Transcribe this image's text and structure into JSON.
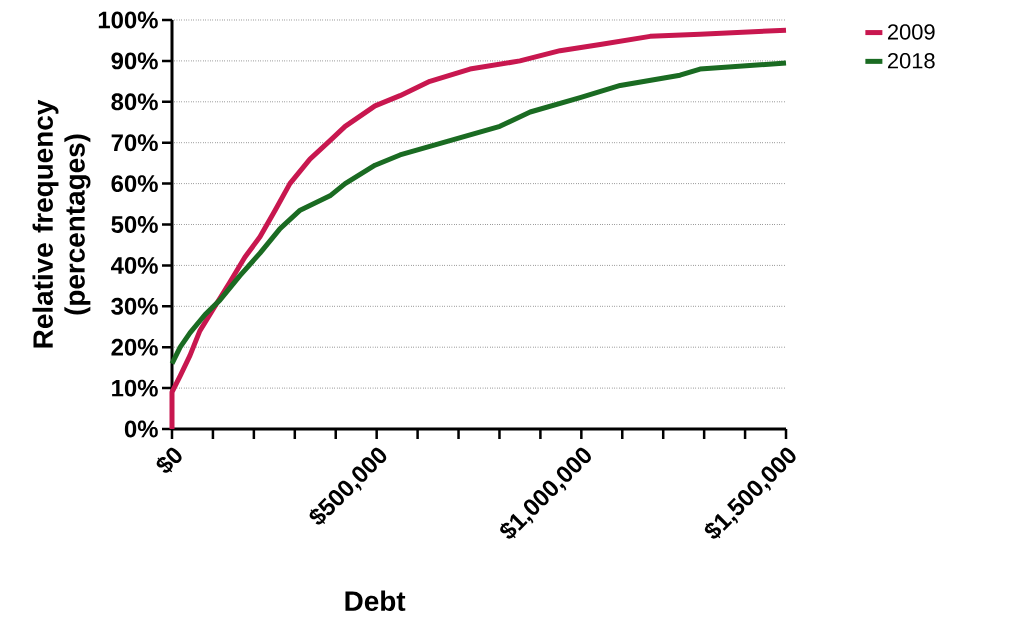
{
  "chart_data": {
    "type": "line",
    "xlabel": "Debt",
    "ylabel": "Relative frequency (percentages)",
    "xlim": [
      0,
      1500000
    ],
    "ylim": [
      0,
      100
    ],
    "xticks": [
      {
        "value": 0,
        "label": "$0"
      },
      {
        "value": 100000,
        "label": null
      },
      {
        "value": 200000,
        "label": null
      },
      {
        "value": 300000,
        "label": null
      },
      {
        "value": 400000,
        "label": null
      },
      {
        "value": 500000,
        "label": "$500,000"
      },
      {
        "value": 600000,
        "label": null
      },
      {
        "value": 700000,
        "label": null
      },
      {
        "value": 800000,
        "label": null
      },
      {
        "value": 900000,
        "label": null
      },
      {
        "value": 1000000,
        "label": "$1,000,000"
      },
      {
        "value": 1100000,
        "label": null
      },
      {
        "value": 1200000,
        "label": null
      },
      {
        "value": 1300000,
        "label": null
      },
      {
        "value": 1400000,
        "label": null
      },
      {
        "value": 1500000,
        "label": "$1,500,000"
      }
    ],
    "yticks": [
      {
        "value": 0,
        "label": "0%"
      },
      {
        "value": 10,
        "label": "10%"
      },
      {
        "value": 20,
        "label": "20%"
      },
      {
        "value": 30,
        "label": "30%"
      },
      {
        "value": 40,
        "label": "40%"
      },
      {
        "value": 50,
        "label": "50%"
      },
      {
        "value": 60,
        "label": "60%"
      },
      {
        "value": 70,
        "label": "70%"
      },
      {
        "value": 80,
        "label": "80%"
      },
      {
        "value": 90,
        "label": "90%"
      },
      {
        "value": 100,
        "label": "100%"
      }
    ],
    "grid": "y",
    "legend": "top right",
    "marker": "none",
    "line_style": "solid",
    "series": [
      {
        "name": "2009",
        "color": "#c8174f",
        "x": [
          0,
          0,
          20000,
          44000,
          68000,
          105000,
          142000,
          178000,
          215000,
          252000,
          288000,
          337000,
          386000,
          423000,
          496000,
          557000,
          630000,
          728000,
          850000,
          948000,
          1046000,
          1168000,
          1290000,
          1500000
        ],
        "values": [
          0,
          9,
          13,
          18,
          24,
          30,
          36,
          42,
          47,
          53.5,
          60,
          66,
          70.5,
          74,
          79,
          81.5,
          85,
          88,
          90,
          92.5,
          94,
          96,
          96.5,
          97.5
        ]
      },
      {
        "name": "2018",
        "color": "#1a6b22",
        "x": [
          0,
          20000,
          44000,
          81000,
          117000,
          166000,
          215000,
          264000,
          313000,
          386000,
          423000,
          496000,
          557000,
          679000,
          801000,
          875000,
          997000,
          1095000,
          1241000,
          1290000,
          1500000
        ],
        "values": [
          16,
          20,
          23.5,
          28,
          31.5,
          37.5,
          43,
          49,
          53.5,
          57,
          60,
          64.5,
          67,
          70.5,
          74,
          77.5,
          81,
          84,
          86.5,
          88,
          89.5
        ]
      }
    ]
  }
}
